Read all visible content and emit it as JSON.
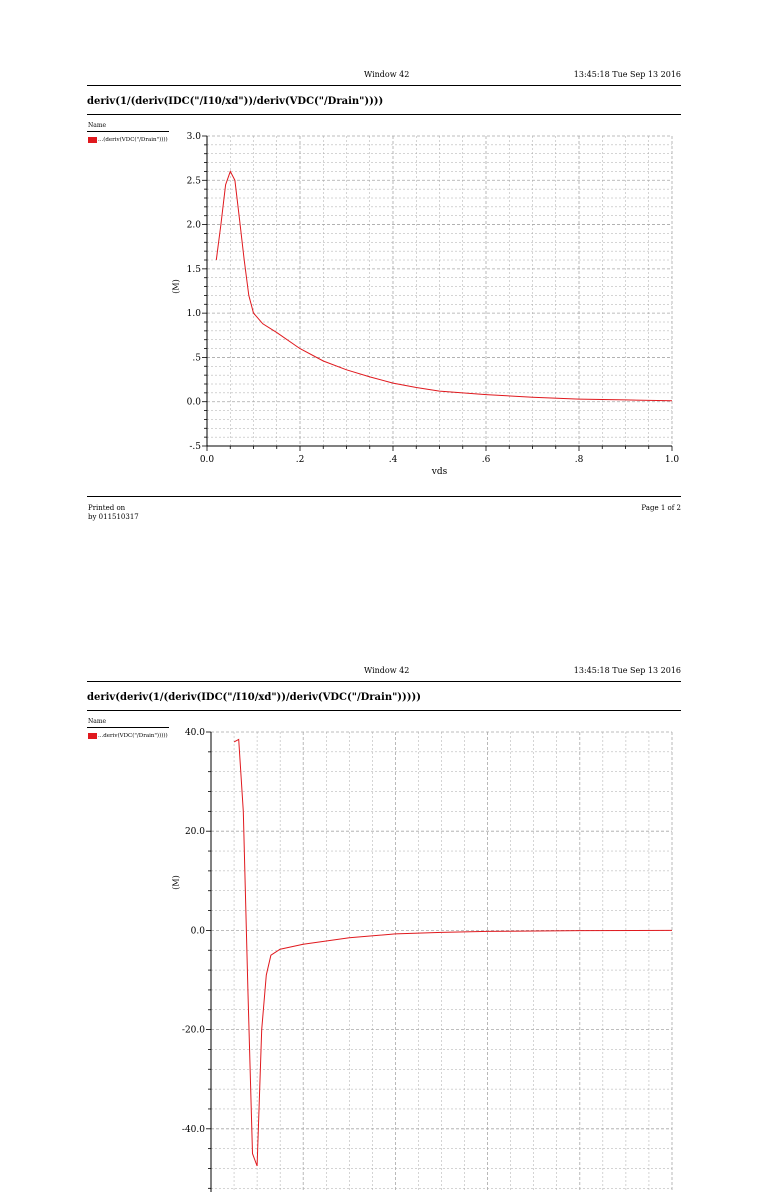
{
  "pages": [
    {
      "window": "Window 42",
      "datetime": "13:45:18  Tue Sep 13 2016",
      "title": "deriv(1/(deriv(IDC(\"/I10/xd\"))/deriv(VDC(\"/Drain\"))))",
      "legend_header": "Name",
      "legend_entry": "...(deriv(VDC(\"/Drain\"))))",
      "printed_on": "Printed on",
      "printed_by": "by 011510317",
      "page_label": "Page 1 of 2"
    },
    {
      "window": "Window 42",
      "datetime": "13:45:18  Tue Sep 13 2016",
      "title": "deriv(deriv(1/(deriv(IDC(\"/I10/xd\"))/deriv(VDC(\"/Drain\")))))",
      "legend_header": "Name",
      "legend_entry": "...deriv(VDC(\"/Drain\")))))"
    }
  ],
  "colors": {
    "trace": "#e0191e",
    "grid": "#a8a8a8"
  },
  "chart_data": [
    {
      "type": "line",
      "title": "deriv(1/(deriv(IDC(\"/I10/xd\"))/deriv(VDC(\"/Drain\"))))",
      "xlabel": "vds",
      "ylabel": "(M)",
      "xlim": [
        0.0,
        1.0
      ],
      "ylim": [
        -0.5,
        3.0
      ],
      "xticks": [
        0.0,
        0.2,
        0.4,
        0.6,
        0.8,
        1.0
      ],
      "xticklabels": [
        "0.0",
        ".2",
        ".4",
        ".6",
        ".8",
        "1.0"
      ],
      "yticks": [
        -0.5,
        0.0,
        0.5,
        1.0,
        1.5,
        2.0,
        2.5,
        3.0
      ],
      "yticklabels": [
        "-.5",
        "0.0",
        ".5",
        "1.0",
        "1.5",
        "2.0",
        "2.5",
        "3.0"
      ],
      "grid": true,
      "legend": "top-left",
      "series": [
        {
          "name": "...(deriv(VDC(\"/Drain\"))))",
          "x": [
            0.02,
            0.03,
            0.04,
            0.05,
            0.06,
            0.07,
            0.08,
            0.09,
            0.1,
            0.12,
            0.15,
            0.2,
            0.25,
            0.3,
            0.35,
            0.4,
            0.45,
            0.5,
            0.6,
            0.7,
            0.8,
            0.9,
            1.0
          ],
          "y": [
            1.6,
            2.0,
            2.45,
            2.6,
            2.5,
            2.05,
            1.6,
            1.2,
            1.0,
            0.88,
            0.78,
            0.6,
            0.46,
            0.36,
            0.28,
            0.21,
            0.16,
            0.12,
            0.08,
            0.05,
            0.03,
            0.02,
            0.01
          ]
        }
      ]
    },
    {
      "type": "line",
      "title": "deriv(deriv(1/(deriv(IDC(\"/I10/xd\"))/deriv(VDC(\"/Drain\")))))",
      "xlabel": "",
      "ylabel": "(M)",
      "xlim": [
        0.0,
        1.0
      ],
      "ylim": [
        -60.0,
        40.0
      ],
      "yticks": [
        -40.0,
        -20.0,
        0.0,
        20.0,
        40.0
      ],
      "yticklabels": [
        "-40.0",
        "-20.0",
        "0.0",
        "20.0",
        "40.0"
      ],
      "grid": true,
      "legend": "top-left",
      "series": [
        {
          "name": "...deriv(VDC(\"/Drain\")))))",
          "x": [
            0.05,
            0.06,
            0.07,
            0.08,
            0.09,
            0.1,
            0.11,
            0.12,
            0.13,
            0.15,
            0.2,
            0.3,
            0.4,
            0.5,
            0.6,
            0.8,
            1.0
          ],
          "y": [
            38.0,
            38.5,
            24.0,
            -12.0,
            -45.0,
            -47.5,
            -20.0,
            -9.0,
            -5.0,
            -3.8,
            -2.8,
            -1.5,
            -0.7,
            -0.4,
            -0.2,
            -0.05,
            0.0
          ]
        }
      ]
    }
  ]
}
